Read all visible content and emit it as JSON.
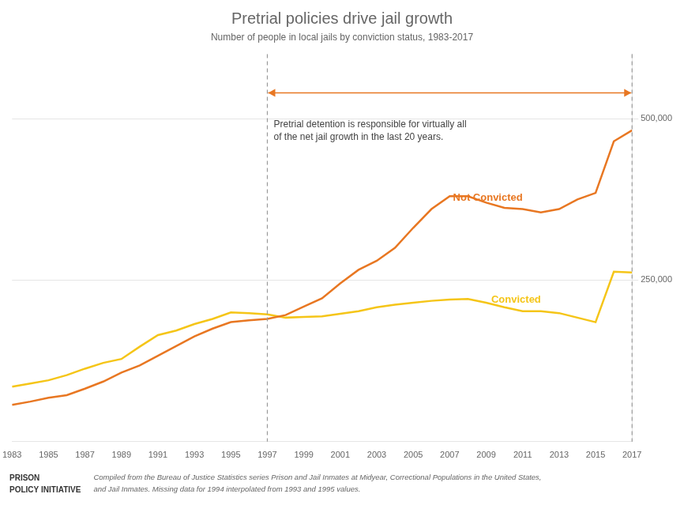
{
  "chart_data": {
    "type": "line",
    "title": "Pretrial policies drive jail growth",
    "subtitle": "Number of people in local jails by conviction status, 1983-2017",
    "x": [
      1983,
      1984,
      1985,
      1986,
      1987,
      1988,
      1989,
      1990,
      1991,
      1992,
      1993,
      1994,
      1995,
      1996,
      1997,
      1998,
      1999,
      2000,
      2001,
      2002,
      2003,
      2004,
      2005,
      2006,
      2007,
      2008,
      2009,
      2010,
      2011,
      2012,
      2013,
      2014,
      2015,
      2016,
      2017
    ],
    "series": [
      {
        "name": "Not Convicted",
        "color": "#e87722",
        "values": [
          57000,
          62000,
          68000,
          72000,
          82000,
          93000,
          107000,
          118000,
          133000,
          148000,
          163000,
          175000,
          185000,
          188000,
          190000,
          196000,
          209000,
          222000,
          245000,
          266000,
          280000,
          300000,
          331000,
          360000,
          380000,
          380000,
          370000,
          362000,
          360000,
          355000,
          360000,
          375000,
          385000,
          465000,
          482000
        ]
      },
      {
        "name": "Convicted",
        "color": "#f5c518",
        "values": [
          85000,
          90000,
          95000,
          103000,
          113000,
          122000,
          128000,
          147000,
          165000,
          172000,
          182000,
          190000,
          200000,
          199000,
          197000,
          192000,
          193000,
          194000,
          198000,
          202000,
          208000,
          212000,
          215000,
          218000,
          220000,
          221000,
          215000,
          208000,
          202000,
          202000,
          199000,
          192000,
          185000,
          263000,
          262000
        ]
      }
    ],
    "xlim": [
      1983,
      2017
    ],
    "xticks": [
      1983,
      1985,
      1987,
      1989,
      1991,
      1993,
      1995,
      1997,
      1999,
      2001,
      2003,
      2005,
      2007,
      2009,
      2011,
      2013,
      2015,
      2017
    ],
    "ylim": [
      0,
      600000
    ],
    "yticks": [
      {
        "value": 250000,
        "label": "250,000"
      },
      {
        "value": 500000,
        "label": "500,000"
      }
    ],
    "grid": true,
    "annotations": [
      {
        "text": "Pretrial detention is responsible for virtually all\nof the net jail growth in the last 20 years.",
        "x": 1997
      },
      {
        "text": "PRISON\nPOLICY INITIATIVE"
      },
      {
        "text": "Compiled from the Bureau of Justice Statistics series Prison and Jail Inmates at Midyear, Correctional Populations in the United States,\nand Jail Inmates. Missing data for 1994 interpolated from 1993 and 1995 values."
      }
    ]
  }
}
